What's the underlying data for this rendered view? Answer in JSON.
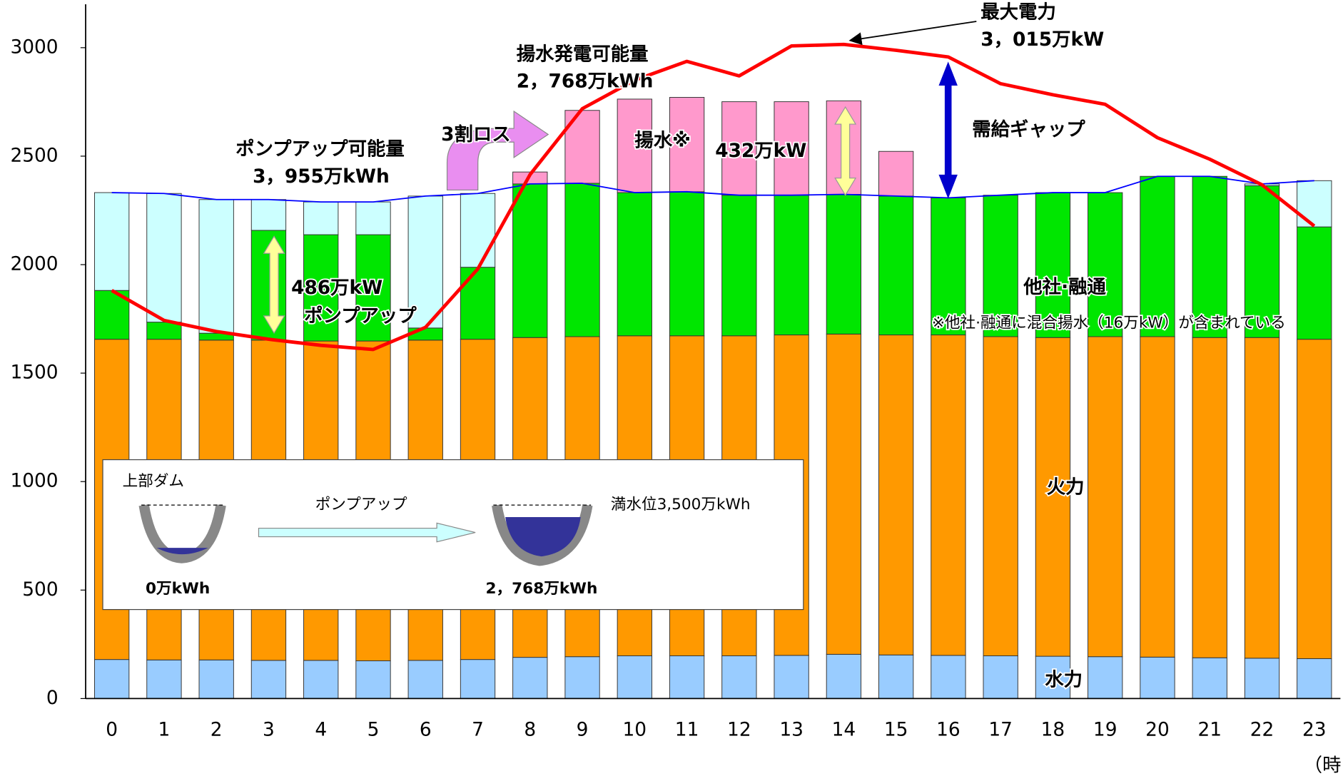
{
  "chart_data": {
    "type": "stacked-bar-line",
    "categories": [
      "0",
      "1",
      "2",
      "3",
      "4",
      "5",
      "6",
      "7",
      "8",
      "9",
      "10",
      "11",
      "12",
      "13",
      "14",
      "15",
      "16",
      "17",
      "18",
      "19",
      "20",
      "21",
      "22",
      "23"
    ],
    "series": [
      {
        "name": "水力",
        "color": "#99ccff",
        "values": [
          180,
          178,
          178,
          176,
          176,
          174,
          176,
          180,
          190,
          193,
          197,
          197,
          197,
          199,
          204,
          201,
          199,
          197,
          195,
          193,
          191,
          188,
          186,
          184
        ]
      },
      {
        "name": "火力",
        "color": "#ff9900",
        "values": [
          1476,
          1478,
          1474,
          1476,
          1472,
          1474,
          1476,
          1476,
          1474,
          1475,
          1475,
          1475,
          1475,
          1477,
          1476,
          1475,
          1477,
          1471,
          1469,
          1475,
          1477,
          1476,
          1478,
          1472
        ]
      },
      {
        "name": "他社·融通",
        "color": "#00e600",
        "values": [
          225,
          79,
          32,
          506,
          490,
          490,
          56,
          332,
          708,
          707,
          660,
          664,
          648,
          644,
          644,
          640,
          632,
          652,
          668,
          664,
          739,
          743,
          700,
          518
        ]
      },
      {
        "name": "ポンプアップ",
        "color": "#ccffff",
        "values": [
          451,
          593,
          616,
          142,
          151,
          151,
          608,
          340,
          0,
          0,
          0,
          0,
          0,
          0,
          0,
          0,
          0,
          0,
          0,
          0,
          0,
          0,
          8,
          213
        ]
      },
      {
        "name": "揚水※",
        "color": "#ff99cc",
        "values": [
          0,
          0,
          0,
          0,
          0,
          0,
          0,
          0,
          55,
          336,
          431,
          435,
          431,
          431,
          431,
          206,
          0,
          0,
          0,
          0,
          0,
          0,
          0,
          0
        ]
      }
    ],
    "lines": [
      {
        "color": "#0000ff",
        "values": [
          2332,
          2328,
          2300,
          2300,
          2289,
          2289,
          2316,
          2328,
          2372,
          2375,
          2332,
          2336,
          2320,
          2320,
          2324,
          2316,
          2308,
          2320,
          2332,
          2332,
          2407,
          2407,
          2372,
          2387
        ]
      },
      {
        "color": "#ff0000",
        "values": [
          1881,
          1743,
          1692,
          1656,
          1628,
          1609,
          1711,
          1980,
          2415,
          2719,
          2850,
          2937,
          2870,
          3008,
          3015,
          2988,
          2957,
          2834,
          2783,
          2739,
          2585,
          2486,
          2368,
          2178
        ]
      }
    ],
    "ylim": [
      0,
      3200
    ],
    "yticks": [
      0,
      500,
      1000,
      1500,
      2000,
      2500,
      3000
    ],
    "x_unit": "（時台）",
    "annotations": [
      "最大電力",
      "3，015万kW",
      "揚水発電可能量",
      "2，768万kWh",
      "ポンプアップ可能量",
      "3，955万kWh",
      "3割ロス",
      "432万kW",
      "需給ギャップ",
      "486万kW",
      "※他社·融通に混合揚水（16万kW）が含まれている"
    ],
    "inset": {
      "upper_dam": "上部ダム",
      "arrow_label": "ポンプアップ",
      "full_level": "満水位3,500万kWh",
      "empty": "0万kWh",
      "filled": "2，768万kWh"
    }
  }
}
